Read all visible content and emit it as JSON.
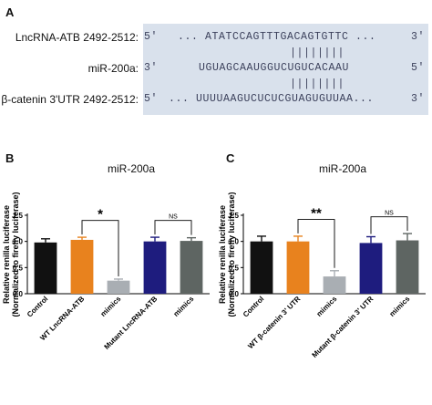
{
  "panel_a": {
    "label": "A",
    "rows": [
      {
        "name": "LncRNA-ATB 2492-2512:",
        "left_end": "5'",
        "seq": "... ATATCCAGTTTGACAGTGTTC ...",
        "right_end": "3'"
      },
      {
        "name": "miR-200a:",
        "left_end": "3'",
        "seq": "UGUAGCAAUGGUCUGUCACAAU",
        "right_end": "5'"
      },
      {
        "name": "β-catenin 3'UTR 2492-2512:",
        "left_end": "5'",
        "seq": "... UUUUAAGUCUCUCGUAGUGUUAA...",
        "right_end": "3'"
      }
    ],
    "pair_marks_1": "||||||||",
    "pair_marks_2": "||||||||"
  },
  "panel_b": {
    "label": "B",
    "title": "miR-200a"
  },
  "panel_c": {
    "label": "C",
    "title": "miR-200a"
  },
  "chart_data": [
    {
      "type": "bar",
      "title": "miR-200a",
      "ylabel": "Relative renilla luciferase (Normalized to firefly luciferase)",
      "ylim": [
        0,
        1.5
      ],
      "yticks": [
        "0.0",
        "0.5",
        "1.0",
        "1.5"
      ],
      "categories": [
        "Control",
        "WT LncRNA-ATB",
        "mimics",
        "Mutant LncRNA-ATB",
        "mimics"
      ],
      "values": [
        0.98,
        1.03,
        0.25,
        1.0,
        1.01
      ],
      "errors": [
        0.07,
        0.05,
        0.03,
        0.08,
        0.06
      ],
      "colors": [
        "#111111",
        "#e8821e",
        "#a9aeb3",
        "#1e1c7e",
        "#5e6562"
      ],
      "annotations": [
        {
          "text": "*",
          "between": [
            1,
            2
          ]
        },
        {
          "text": "NS",
          "between": [
            3,
            4
          ]
        }
      ]
    },
    {
      "type": "bar",
      "title": "miR-200a",
      "ylabel": "Relative renilla luciferase (Normalized to firefly luciferase)",
      "ylim": [
        0,
        1.5
      ],
      "yticks": [
        "0.0",
        "0.5",
        "1.0",
        "1.5"
      ],
      "categories": [
        "Control",
        "WT β-catenin 3' UTR",
        "mimics",
        "Mutant β-catenin 3' UTR",
        "mimics"
      ],
      "values": [
        1.0,
        1.0,
        0.33,
        0.97,
        1.02
      ],
      "errors": [
        0.1,
        0.1,
        0.11,
        0.12,
        0.13
      ],
      "colors": [
        "#111111",
        "#e8821e",
        "#a9aeb3",
        "#1e1c7e",
        "#5e6562"
      ],
      "annotations": [
        {
          "text": "**",
          "between": [
            1,
            2
          ]
        },
        {
          "text": "NS",
          "between": [
            3,
            4
          ]
        }
      ]
    }
  ]
}
